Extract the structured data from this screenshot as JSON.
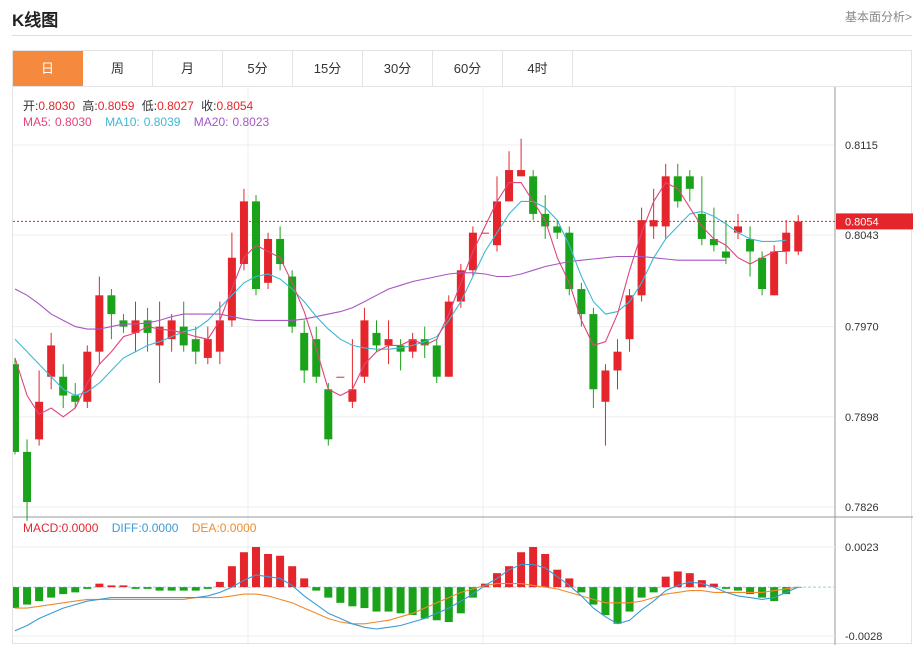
{
  "header": {
    "title": "K线图",
    "link": "基本面分析>"
  },
  "tabs": [
    "日",
    "周",
    "月",
    "5分",
    "15分",
    "30分",
    "60分",
    "4时"
  ],
  "active_tab": 0,
  "ohlc_info": {
    "open_label": "开:",
    "open": "0.8030",
    "high_label": "高:",
    "high": "0.8059",
    "low_label": "低:",
    "low": "0.8027",
    "close_label": "收:",
    "close": "0.8054"
  },
  "ma_info": {
    "ma5_label": "MA5:",
    "ma5": "0.8030",
    "ma10_label": "MA10:",
    "ma10": "0.8039",
    "ma20_label": "MA20:",
    "ma20": "0.8023"
  },
  "macd_info": {
    "macd_label": "MACD:",
    "macd": "0.0000",
    "diff_label": "DIFF:",
    "diff": "0.0000",
    "dea_label": "DEA:",
    "dea": "0.0000"
  },
  "colors": {
    "up": "#e4262c",
    "down": "#1aa31a",
    "ma5": "#e0457b",
    "ma10": "#3cb9d4",
    "ma20": "#a855c4",
    "diff": "#3a9ad9",
    "dea": "#f08b2d",
    "accent": "#f5893d"
  },
  "chart_data": [
    {
      "type": "candlestick",
      "yticks": [
        "0.8115",
        "0.8043",
        "0.7970",
        "0.7898",
        "0.7826"
      ],
      "ylim": [
        0.7826,
        0.8115
      ],
      "last_price": "0.8054",
      "candles": [
        [
          0.794,
          0.787,
          0.7945,
          0.7868
        ],
        [
          0.787,
          0.783,
          0.788,
          0.7815
        ],
        [
          0.788,
          0.791,
          0.7935,
          0.7875
        ],
        [
          0.793,
          0.7955,
          0.7965,
          0.792
        ],
        [
          0.793,
          0.7915,
          0.794,
          0.7905
        ],
        [
          0.7915,
          0.791,
          0.7925,
          0.7905
        ],
        [
          0.791,
          0.795,
          0.7955,
          0.7905
        ],
        [
          0.795,
          0.7995,
          0.801,
          0.794
        ],
        [
          0.7995,
          0.798,
          0.8,
          0.796
        ],
        [
          0.7975,
          0.797,
          0.798,
          0.7965
        ],
        [
          0.7965,
          0.7975,
          0.799,
          0.795
        ],
        [
          0.7975,
          0.7965,
          0.7985,
          0.795
        ],
        [
          0.7955,
          0.797,
          0.799,
          0.7925
        ],
        [
          0.796,
          0.7975,
          0.798,
          0.795
        ],
        [
          0.797,
          0.7955,
          0.799,
          0.795
        ],
        [
          0.796,
          0.795,
          0.797,
          0.794
        ],
        [
          0.7945,
          0.796,
          0.797,
          0.794
        ],
        [
          0.795,
          0.7975,
          0.799,
          0.794
        ],
        [
          0.7975,
          0.8025,
          0.8045,
          0.797
        ],
        [
          0.802,
          0.807,
          0.808,
          0.8015
        ],
        [
          0.807,
          0.8,
          0.8075,
          0.7995
        ],
        [
          0.8005,
          0.804,
          0.8045,
          0.8
        ],
        [
          0.804,
          0.802,
          0.805,
          0.8015
        ],
        [
          0.801,
          0.797,
          0.8015,
          0.7965
        ],
        [
          0.7965,
          0.7935,
          0.7975,
          0.7925
        ],
        [
          0.796,
          0.793,
          0.797,
          0.7925
        ],
        [
          0.792,
          0.788,
          0.7925,
          0.7875
        ],
        [
          0.793,
          0.793,
          0.793,
          0.793
        ],
        [
          0.791,
          0.792,
          0.796,
          0.7905
        ],
        [
          0.793,
          0.7975,
          0.7985,
          0.7925
        ],
        [
          0.7965,
          0.7955,
          0.7975,
          0.795
        ],
        [
          0.7955,
          0.796,
          0.7975,
          0.794
        ],
        [
          0.7955,
          0.795,
          0.796,
          0.7935
        ],
        [
          0.795,
          0.796,
          0.7965,
          0.7945
        ],
        [
          0.796,
          0.7955,
          0.797,
          0.7945
        ],
        [
          0.7955,
          0.793,
          0.796,
          0.7925
        ],
        [
          0.793,
          0.799,
          0.7995,
          0.793
        ],
        [
          0.799,
          0.8015,
          0.802,
          0.7985
        ],
        [
          0.8015,
          0.8045,
          0.805,
          0.801
        ],
        [
          0.8045,
          0.8045,
          0.8045,
          0.8045
        ],
        [
          0.8035,
          0.807,
          0.809,
          0.803
        ],
        [
          0.807,
          0.8095,
          0.811,
          0.809
        ],
        [
          0.809,
          0.8095,
          0.812,
          0.809
        ],
        [
          0.809,
          0.806,
          0.8095,
          0.8055
        ],
        [
          0.806,
          0.805,
          0.8075,
          0.804
        ],
        [
          0.805,
          0.8045,
          0.8055,
          0.804
        ],
        [
          0.8045,
          0.8,
          0.805,
          0.7995
        ],
        [
          0.8,
          0.798,
          0.8005,
          0.797
        ],
        [
          0.798,
          0.792,
          0.7985,
          0.7905
        ],
        [
          0.791,
          0.7935,
          0.794,
          0.7875
        ],
        [
          0.7935,
          0.795,
          0.796,
          0.792
        ],
        [
          0.796,
          0.7995,
          0.8,
          0.795
        ],
        [
          0.7995,
          0.8055,
          0.8065,
          0.799
        ],
        [
          0.805,
          0.8055,
          0.808,
          0.804
        ],
        [
          0.805,
          0.809,
          0.81,
          0.804
        ],
        [
          0.809,
          0.807,
          0.81,
          0.8065
        ],
        [
          0.809,
          0.808,
          0.8095,
          0.807
        ],
        [
          0.806,
          0.804,
          0.809,
          0.8035
        ],
        [
          0.804,
          0.8035,
          0.8065,
          0.803
        ],
        [
          0.803,
          0.8025,
          0.8055,
          0.802
        ],
        [
          0.8045,
          0.805,
          0.806,
          0.804
        ],
        [
          0.804,
          0.803,
          0.805,
          0.801
        ],
        [
          0.8025,
          0.8,
          0.803,
          0.7995
        ],
        [
          0.7995,
          0.803,
          0.8035,
          0.7995
        ],
        [
          0.803,
          0.8045,
          0.8055,
          0.802
        ],
        [
          0.803,
          0.8054,
          0.8059,
          0.8027
        ]
      ],
      "ma5": [
        0.7945,
        0.7915,
        0.79,
        0.7905,
        0.7898,
        0.7905,
        0.7925,
        0.794,
        0.795,
        0.7962,
        0.7965,
        0.797,
        0.7968,
        0.7967,
        0.7965,
        0.7962,
        0.796,
        0.7975,
        0.8,
        0.8025,
        0.8035,
        0.803,
        0.8025,
        0.8005,
        0.7982,
        0.7952,
        0.792,
        0.7915,
        0.792,
        0.794,
        0.795,
        0.7955,
        0.7955,
        0.796,
        0.7955,
        0.796,
        0.798,
        0.8005,
        0.803,
        0.805,
        0.807,
        0.8085,
        0.8085,
        0.807,
        0.8055,
        0.8025,
        0.8005,
        0.7975,
        0.7955,
        0.7958,
        0.798,
        0.8015,
        0.8045,
        0.807,
        0.8085,
        0.808,
        0.8065,
        0.805,
        0.804,
        0.8035,
        0.8025,
        0.802,
        0.8025,
        0.803,
        0.803
      ],
      "ma10": [
        0.796,
        0.795,
        0.794,
        0.793,
        0.792,
        0.7915,
        0.7918,
        0.7925,
        0.7935,
        0.7945,
        0.795,
        0.7955,
        0.7958,
        0.7962,
        0.7966,
        0.7968,
        0.7975,
        0.7985,
        0.7995,
        0.8005,
        0.801,
        0.8012,
        0.8008,
        0.8,
        0.799,
        0.7978,
        0.7968,
        0.796,
        0.7955,
        0.7953,
        0.7952,
        0.7952,
        0.7953,
        0.7955,
        0.7958,
        0.7962,
        0.7975,
        0.799,
        0.801,
        0.803,
        0.8045,
        0.806,
        0.807,
        0.807,
        0.8065,
        0.8055,
        0.8035,
        0.801,
        0.799,
        0.798,
        0.7982,
        0.799,
        0.8005,
        0.8025,
        0.804,
        0.805,
        0.806,
        0.8062,
        0.8058,
        0.8052,
        0.8045,
        0.804,
        0.8038,
        0.8038,
        0.8039
      ],
      "ma20": [
        0.8,
        0.7995,
        0.7988,
        0.798,
        0.7975,
        0.797,
        0.7968,
        0.7968,
        0.797,
        0.7972,
        0.7972,
        0.7973,
        0.7975,
        0.7978,
        0.798,
        0.798,
        0.798,
        0.798,
        0.7978,
        0.7976,
        0.7975,
        0.7975,
        0.7975,
        0.7975,
        0.7976,
        0.7978,
        0.798,
        0.7982,
        0.7985,
        0.799,
        0.7995,
        0.8,
        0.8003,
        0.8006,
        0.8008,
        0.801,
        0.8012,
        0.8013,
        0.8013,
        0.8012,
        0.801,
        0.801,
        0.8012,
        0.8015,
        0.8018,
        0.802,
        0.8022,
        0.8023,
        0.8024,
        0.8025,
        0.8026,
        0.8026,
        0.8026,
        0.8025,
        0.8024,
        0.8023,
        0.8023,
        0.8023,
        0.8023,
        0.8023
      ]
    },
    {
      "type": "bar",
      "yticks": [
        "0.0023",
        "-0.0028"
      ],
      "ylim": [
        -0.0028,
        0.0023
      ],
      "macd": [
        -0.0012,
        -0.001,
        -0.0008,
        -0.0006,
        -0.0004,
        -0.0003,
        -0.0001,
        0.0002,
        0.0001,
        0.0001,
        -0.0001,
        -0.0001,
        -0.0002,
        -0.0002,
        -0.0002,
        -0.0002,
        -0.0001,
        0.0003,
        0.0012,
        0.002,
        0.0023,
        0.0019,
        0.0018,
        0.0012,
        0.0005,
        -0.0002,
        -0.0006,
        -0.0009,
        -0.0011,
        -0.0012,
        -0.0014,
        -0.0014,
        -0.0015,
        -0.0016,
        -0.0018,
        -0.0019,
        -0.002,
        -0.0015,
        -0.0006,
        0.0002,
        0.0008,
        0.0012,
        0.002,
        0.0023,
        0.0019,
        0.001,
        0.0005,
        -0.0003,
        -0.001,
        -0.0016,
        -0.0021,
        -0.0014,
        -0.0006,
        -0.0003,
        0.0006,
        0.0009,
        0.0008,
        0.0004,
        0.0002,
        -0.0001,
        -0.0002,
        -0.0004,
        -0.0006,
        -0.0008,
        -0.0004,
        0.0
      ],
      "diff": [
        -0.0025,
        -0.0022,
        -0.0018,
        -0.0015,
        -0.0012,
        -0.001,
        -0.0008,
        -0.0007,
        -0.0006,
        -0.0006,
        -0.0006,
        -0.0006,
        -0.0006,
        -0.0006,
        -0.0006,
        -0.0006,
        -0.0005,
        -0.0003,
        0.0,
        0.0004,
        0.0007,
        0.0006,
        0.0005,
        0.0001,
        -0.0005,
        -0.001,
        -0.0015,
        -0.0018,
        -0.0021,
        -0.0023,
        -0.0024,
        -0.0023,
        -0.0022,
        -0.002,
        -0.0018,
        -0.0015,
        -0.0012,
        -0.0008,
        -0.0004,
        0.0001,
        0.0005,
        0.001,
        0.0013,
        0.0013,
        0.0011,
        0.0006,
        0.0001,
        -0.0005,
        -0.0012,
        -0.0017,
        -0.0021,
        -0.0019,
        -0.0013,
        -0.0008,
        -0.0002,
        0.0001,
        0.0003,
        0.0002,
        0.0,
        -0.0003,
        -0.0005,
        -0.0006,
        -0.0007,
        -0.0006,
        -0.0003,
        0.0
      ],
      "dea": [
        -0.0012,
        -0.0012,
        -0.0011,
        -0.001,
        -0.0009,
        -0.0008,
        -0.0007,
        -0.0007,
        -0.0007,
        -0.0007,
        -0.0007,
        -0.0007,
        -0.0007,
        -0.0007,
        -0.0007,
        -0.0006,
        -0.0006,
        -0.0006,
        -0.0005,
        -0.0004,
        -0.0004,
        -0.0005,
        -0.0007,
        -0.0009,
        -0.0012,
        -0.0015,
        -0.0018,
        -0.002,
        -0.0021,
        -0.0021,
        -0.002,
        -0.0019,
        -0.0017,
        -0.0015,
        -0.0012,
        -0.0009,
        -0.0006,
        -0.0003,
        -0.0001,
        0.0001,
        0.0002,
        0.0002,
        0.0002,
        0.0001,
        0.0,
        -0.0001,
        -0.0003,
        -0.0005,
        -0.0007,
        -0.0009,
        -0.0009,
        -0.0009,
        -0.0008,
        -0.0006,
        -0.0004,
        -0.0003,
        -0.0002,
        -0.0002,
        -0.0003,
        -0.0003,
        -0.0003,
        -0.0003,
        -0.0003,
        -0.0002,
        -0.0001,
        0.0
      ]
    }
  ]
}
